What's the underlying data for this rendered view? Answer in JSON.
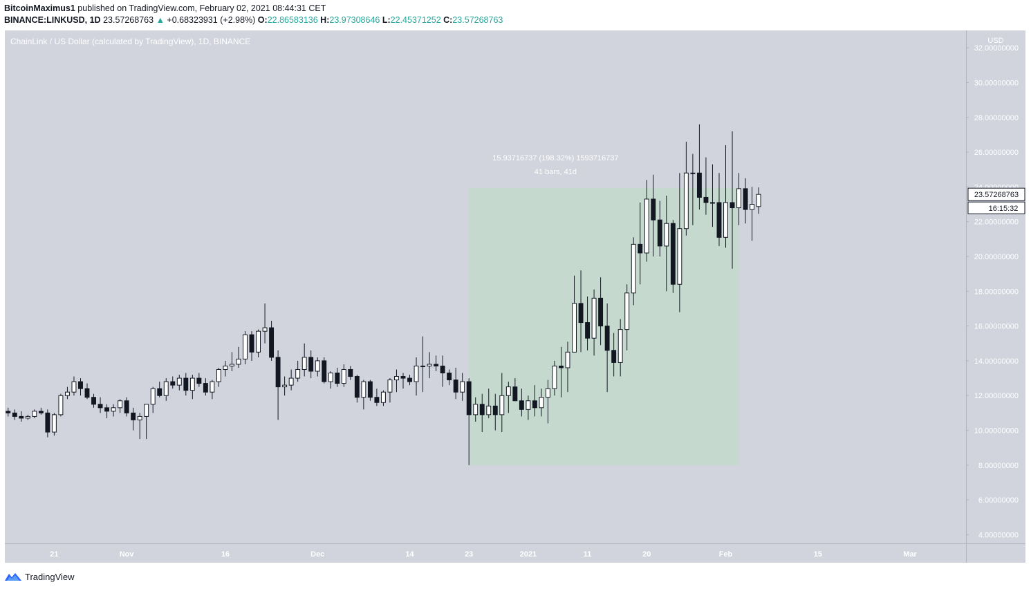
{
  "header": {
    "author": "BitcoinMaximus1",
    "published_text": "published on TradingView.com, February 02, 2021 08:44:31 CET",
    "symbol": "BINANCE:LINKUSD, 1D",
    "last_price": "23.57268763",
    "change_arrow": "▲",
    "change": "+0.68323931 (+2.98%)",
    "o_label": "O:",
    "o_value": "22.86583136",
    "h_label": "H:",
    "h_value": "23.97308646",
    "l_label": "L:",
    "l_value": "22.45371252",
    "c_label": "C:",
    "c_value": "23.57268763"
  },
  "colors": {
    "background": "#d1d4dc",
    "up_body": "#ffffff",
    "down_body": "#131722",
    "wick": "#131722",
    "measure_fill": "#c5d9ce",
    "header_green": "#26a69a"
  },
  "footer": {
    "brand": "TradingView",
    "logo_icon": "tradingview-logo-icon"
  },
  "chart_data": {
    "type": "candlestick",
    "title": "ChainLink / US Dollar (calculated by TradingView), 1D, BINANCE",
    "ylabel": "USD",
    "ylim": [
      3.5,
      33.0
    ],
    "y_ticks": [
      4,
      6,
      8,
      10,
      12,
      14,
      16,
      18,
      20,
      22,
      24,
      26,
      28,
      30,
      32
    ],
    "y_tick_labels": [
      "4.00000000",
      "6.00000000",
      "8.00000000",
      "10.00000000",
      "12.00000000",
      "14.00000000",
      "16.00000000",
      "18.00000000",
      "20.00000000",
      "22.00000000",
      "24.00000000",
      "26.00000000",
      "28.00000000",
      "30.00000000",
      "32.00000000"
    ],
    "x_tick_labels": [
      "21",
      "Nov",
      "16",
      "Dec",
      "14",
      "23",
      "2021",
      "11",
      "20",
      "Feb",
      "15",
      "Mar"
    ],
    "x_tick_bar_index": [
      7,
      18,
      33,
      47,
      61,
      70,
      79,
      88,
      97,
      109,
      123,
      137
    ],
    "x_range_bars": [
      -0.5,
      145.5
    ],
    "current_price_label": "23.57268763",
    "countdown_label": "16:15:32",
    "measure": {
      "start_bar": 70,
      "end_bar": 111,
      "low": 8.0,
      "high": 23.94,
      "label_line1": "15.93716737 (198.32%) 1593716737",
      "label_line2": "41 bars, 41d"
    },
    "candles": [
      [
        0,
        11.1,
        11.3,
        10.8,
        11.0
      ],
      [
        1,
        11.0,
        11.2,
        10.6,
        10.8
      ],
      [
        2,
        10.8,
        11.1,
        10.5,
        10.7
      ],
      [
        3,
        10.7,
        10.9,
        10.6,
        10.8
      ],
      [
        4,
        10.8,
        11.2,
        10.7,
        11.1
      ],
      [
        5,
        11.1,
        11.3,
        10.9,
        11.0
      ],
      [
        6,
        11.0,
        11.2,
        9.6,
        9.9
      ],
      [
        7,
        9.9,
        11.0,
        9.7,
        10.9
      ],
      [
        8,
        10.9,
        12.1,
        10.8,
        12.0
      ],
      [
        9,
        12.0,
        12.5,
        11.8,
        12.2
      ],
      [
        10,
        12.2,
        13.1,
        12.0,
        12.8
      ],
      [
        11,
        12.8,
        13.0,
        12.0,
        12.4
      ],
      [
        12,
        12.4,
        12.7,
        11.8,
        11.9
      ],
      [
        13,
        11.9,
        12.1,
        11.3,
        11.5
      ],
      [
        14,
        11.5,
        11.9,
        11.0,
        11.3
      ],
      [
        15,
        11.3,
        11.5,
        10.7,
        11.1
      ],
      [
        16,
        11.1,
        11.5,
        10.8,
        11.3
      ],
      [
        17,
        11.3,
        11.8,
        11.0,
        11.7
      ],
      [
        18,
        11.7,
        11.9,
        10.8,
        11.0
      ],
      [
        19,
        11.0,
        11.3,
        10.0,
        10.6
      ],
      [
        20,
        10.6,
        11.0,
        9.5,
        10.8
      ],
      [
        21,
        10.8,
        11.5,
        9.5,
        11.5
      ],
      [
        22,
        11.5,
        12.5,
        11.0,
        12.4
      ],
      [
        23,
        12.4,
        12.8,
        11.9,
        12.0
      ],
      [
        24,
        12.0,
        13.0,
        11.7,
        12.8
      ],
      [
        25,
        12.8,
        13.1,
        12.4,
        12.6
      ],
      [
        26,
        12.6,
        13.2,
        12.3,
        13.0
      ],
      [
        27,
        13.0,
        13.3,
        12.0,
        12.3
      ],
      [
        28,
        12.3,
        13.2,
        11.8,
        13.0
      ],
      [
        29,
        13.0,
        13.3,
        12.5,
        12.7
      ],
      [
        30,
        12.7,
        13.0,
        12.0,
        12.2
      ],
      [
        31,
        12.2,
        12.9,
        11.8,
        12.8
      ],
      [
        32,
        12.8,
        13.6,
        12.5,
        13.5
      ],
      [
        33,
        13.5,
        14.0,
        13.1,
        13.7
      ],
      [
        34,
        13.7,
        14.5,
        13.4,
        13.8
      ],
      [
        35,
        13.8,
        14.8,
        13.6,
        14.1
      ],
      [
        36,
        14.1,
        15.7,
        13.8,
        15.5
      ],
      [
        37,
        15.5,
        15.7,
        14.0,
        14.5
      ],
      [
        38,
        14.5,
        15.8,
        14.2,
        15.7
      ],
      [
        39,
        15.7,
        17.3,
        15.0,
        15.9
      ],
      [
        40,
        15.9,
        16.3,
        14.0,
        14.2
      ],
      [
        41,
        14.2,
        14.6,
        10.6,
        12.5
      ],
      [
        42,
        12.5,
        13.1,
        12.0,
        12.6
      ],
      [
        43,
        12.6,
        13.5,
        12.3,
        13.0
      ],
      [
        44,
        13.0,
        14.0,
        12.8,
        13.5
      ],
      [
        45,
        13.5,
        15.0,
        13.1,
        14.2
      ],
      [
        46,
        14.2,
        14.6,
        13.0,
        13.4
      ],
      [
        47,
        13.4,
        14.2,
        13.1,
        14.0
      ],
      [
        48,
        14.0,
        14.2,
        12.7,
        12.8
      ],
      [
        49,
        12.8,
        13.4,
        12.4,
        13.3
      ],
      [
        50,
        13.3,
        13.6,
        12.5,
        12.7
      ],
      [
        51,
        12.7,
        13.8,
        12.5,
        13.5
      ],
      [
        52,
        13.5,
        13.7,
        12.9,
        13.1
      ],
      [
        53,
        13.1,
        13.2,
        11.6,
        11.9
      ],
      [
        54,
        11.9,
        12.9,
        11.2,
        12.8
      ],
      [
        55,
        12.8,
        12.9,
        11.7,
        11.9
      ],
      [
        56,
        11.9,
        12.4,
        11.4,
        11.6
      ],
      [
        57,
        11.6,
        12.3,
        11.4,
        12.2
      ],
      [
        58,
        12.2,
        13.0,
        11.6,
        12.9
      ],
      [
        59,
        12.9,
        13.5,
        12.2,
        13.1
      ],
      [
        60,
        13.1,
        13.3,
        12.4,
        13.0
      ],
      [
        61,
        13.0,
        13.2,
        12.6,
        12.8
      ],
      [
        62,
        12.8,
        14.2,
        12.0,
        13.7
      ],
      [
        63,
        13.7,
        15.4,
        12.2,
        13.7
      ],
      [
        64,
        13.7,
        14.5,
        13.0,
        13.8
      ],
      [
        65,
        13.8,
        14.3,
        13.4,
        13.7
      ],
      [
        66,
        13.7,
        14.3,
        12.5,
        13.3
      ],
      [
        67,
        13.3,
        13.5,
        12.6,
        12.9
      ],
      [
        68,
        12.9,
        13.6,
        11.8,
        12.2
      ],
      [
        69,
        12.2,
        13.3,
        11.7,
        12.8
      ],
      [
        70,
        12.8,
        13.0,
        8.0,
        10.9
      ],
      [
        71,
        10.9,
        11.9,
        10.5,
        11.5
      ],
      [
        72,
        11.5,
        12.1,
        9.9,
        10.9
      ],
      [
        73,
        10.9,
        12.4,
        10.7,
        11.4
      ],
      [
        74,
        11.4,
        12.1,
        10.0,
        10.9
      ],
      [
        75,
        10.9,
        13.3,
        9.9,
        12.0
      ],
      [
        76,
        12.0,
        12.8,
        11.0,
        12.5
      ],
      [
        77,
        12.5,
        13.0,
        11.7,
        11.7
      ],
      [
        78,
        11.7,
        12.4,
        10.8,
        11.2
      ],
      [
        79,
        11.2,
        12.0,
        10.6,
        11.7
      ],
      [
        80,
        11.7,
        12.6,
        10.8,
        11.3
      ],
      [
        81,
        11.3,
        12.4,
        10.8,
        11.9
      ],
      [
        82,
        11.9,
        12.9,
        10.4,
        12.4
      ],
      [
        83,
        12.4,
        14.0,
        12.0,
        13.7
      ],
      [
        84,
        13.7,
        14.8,
        11.9,
        13.6
      ],
      [
        85,
        13.6,
        15.1,
        12.2,
        14.5
      ],
      [
        86,
        14.5,
        18.9,
        14.5,
        17.3
      ],
      [
        87,
        17.3,
        19.2,
        14.5,
        16.2
      ],
      [
        88,
        16.2,
        17.7,
        14.6,
        15.3
      ],
      [
        89,
        15.3,
        18.1,
        14.3,
        17.6
      ],
      [
        90,
        17.6,
        18.8,
        14.9,
        16.0
      ],
      [
        91,
        16.0,
        17.3,
        12.2,
        14.6
      ],
      [
        92,
        14.6,
        15.6,
        13.1,
        13.9
      ],
      [
        93,
        13.9,
        16.4,
        13.1,
        15.8
      ],
      [
        94,
        15.8,
        18.4,
        14.6,
        17.9
      ],
      [
        95,
        17.9,
        21.1,
        17.2,
        20.7
      ],
      [
        96,
        20.7,
        23.1,
        18.4,
        20.2
      ],
      [
        97,
        20.2,
        24.4,
        19.7,
        23.3
      ],
      [
        98,
        23.3,
        24.7,
        20.0,
        22.1
      ],
      [
        99,
        22.1,
        23.2,
        20.0,
        20.6
      ],
      [
        100,
        20.6,
        23.5,
        18.0,
        21.9
      ],
      [
        101,
        21.9,
        22.1,
        17.9,
        18.4
      ],
      [
        102,
        18.4,
        24.8,
        16.8,
        21.6
      ],
      [
        103,
        21.6,
        26.6,
        21.2,
        24.8
      ],
      [
        104,
        24.8,
        25.9,
        21.8,
        24.8
      ],
      [
        105,
        24.8,
        27.6,
        22.7,
        23.4
      ],
      [
        106,
        23.4,
        25.7,
        22.4,
        23.1
      ],
      [
        107,
        23.1,
        25.3,
        21.7,
        23.1
      ],
      [
        108,
        23.1,
        24.8,
        20.6,
        21.1
      ],
      [
        109,
        21.1,
        26.4,
        20.5,
        23.1
      ],
      [
        110,
        23.1,
        27.2,
        19.3,
        22.8
      ],
      [
        111,
        22.8,
        24.8,
        21.8,
        23.9
      ],
      [
        112,
        23.9,
        24.5,
        21.9,
        22.7
      ],
      [
        113,
        22.7,
        24.0,
        20.9,
        23.0
      ],
      [
        114,
        22.87,
        23.97,
        22.45,
        23.57
      ]
    ]
  }
}
